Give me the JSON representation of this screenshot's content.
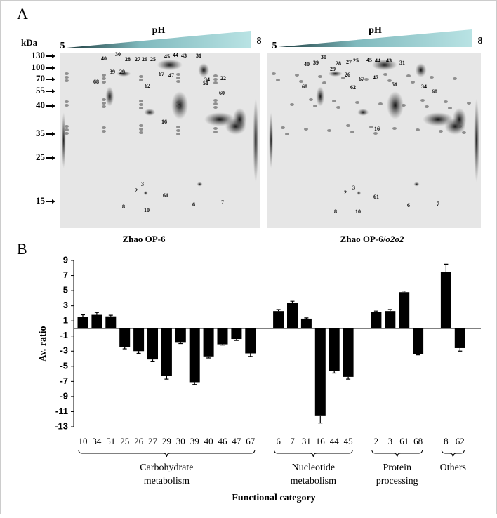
{
  "panel_a": {
    "label": "A",
    "mw_unit": "kDa",
    "mw_markers": [
      "130",
      "100",
      "70",
      "55",
      "40",
      "35",
      "25",
      "15"
    ],
    "gels": [
      {
        "ph_label": "pH",
        "ph_start": "5",
        "ph_end": "8",
        "caption": "Zhao OP-6",
        "caption_italic": "",
        "spots": [
          "40",
          "30",
          "28",
          "27",
          "26",
          "25",
          "45",
          "44",
          "43",
          "31",
          "39",
          "29",
          "67",
          "47",
          "22",
          "68",
          "62",
          "51",
          "34",
          "60",
          "16",
          "3",
          "2",
          "61",
          "8",
          "10",
          "6",
          "7"
        ]
      },
      {
        "ph_label": "pH",
        "ph_start": "5",
        "ph_end": "8",
        "caption": "Zhao OP-6/",
        "caption_italic": "o2o2",
        "spots": [
          "40",
          "39",
          "30",
          "28",
          "29",
          "27",
          "25",
          "26",
          "67",
          "45",
          "44",
          "43",
          "31",
          "47",
          "51",
          "34",
          "60",
          "68",
          "62",
          "16",
          "3",
          "2",
          "61",
          "8",
          "10",
          "6",
          "7"
        ]
      }
    ]
  },
  "chart_data": {
    "type": "bar",
    "panel_label": "B",
    "ylabel": "Av. ratio",
    "xlabel": "Functional category",
    "color": "#000000",
    "ylim": [
      -13,
      9
    ],
    "yticks": [
      -13,
      -11,
      -9,
      -7,
      -5,
      -3,
      -1,
      1,
      3,
      5,
      7,
      9
    ],
    "groups": [
      {
        "label": [
          "Carbohydrate",
          "metabolism"
        ],
        "categories": [
          "10",
          "34",
          "51",
          "25",
          "26",
          "27",
          "29",
          "30",
          "39",
          "40",
          "46",
          "47",
          "67"
        ],
        "values": [
          1.5,
          1.8,
          1.6,
          -2.5,
          -3.0,
          -4.1,
          -6.3,
          -1.8,
          -7.1,
          -3.7,
          -2.1,
          -1.4,
          -3.3
        ],
        "errors": [
          0.3,
          0.3,
          0.15,
          0.2,
          0.3,
          0.3,
          0.4,
          0.2,
          0.3,
          0.2,
          0.1,
          0.2,
          0.4
        ]
      },
      {
        "label": [
          "Nucleotide",
          "metabolism"
        ],
        "categories": [
          "6",
          "7",
          "31",
          "16",
          "44",
          "45"
        ],
        "values": [
          2.3,
          3.4,
          1.3,
          -11.5,
          -5.6,
          -6.4
        ],
        "errors": [
          0.2,
          0.2,
          0.1,
          1.0,
          0.3,
          0.3
        ]
      },
      {
        "label": [
          "Protein",
          "processing"
        ],
        "categories": [
          "2",
          "3",
          "61",
          "68"
        ],
        "values": [
          2.2,
          2.3,
          4.8,
          -3.4
        ],
        "errors": [
          0.1,
          0.2,
          0.15,
          0.1
        ]
      },
      {
        "label": [
          "Others"
        ],
        "categories": [
          "8",
          "62"
        ],
        "values": [
          7.5,
          -2.6
        ],
        "errors": [
          1.0,
          0.4
        ]
      }
    ]
  }
}
